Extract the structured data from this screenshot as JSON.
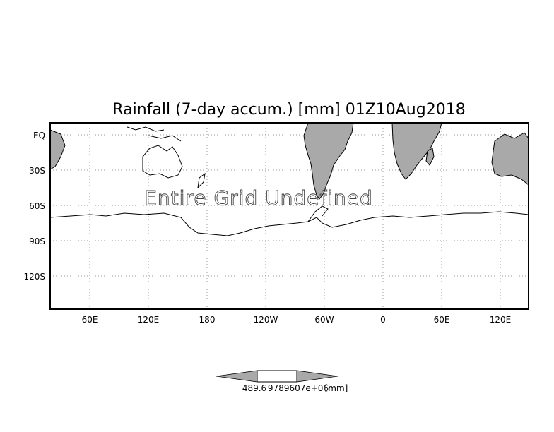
{
  "map": {
    "title": "Rainfall (7-day accum.) [mm] 01Z10Aug2018",
    "overlay_text": "Entire Grid Undefined",
    "lat_labels": [
      "EQ",
      "30S",
      "60S",
      "90S",
      "120S"
    ],
    "lon_labels": [
      "60E",
      "120E",
      "180",
      "120W",
      "60W",
      "0",
      "60E",
      "120E"
    ],
    "land_color": "#a9a9a9",
    "grid_style": "dotted"
  },
  "colorbar": {
    "min_label": "489.6",
    "max_label": "9789607e+06",
    "unit": "[mm]",
    "fill_color": "#a9a9a9"
  }
}
